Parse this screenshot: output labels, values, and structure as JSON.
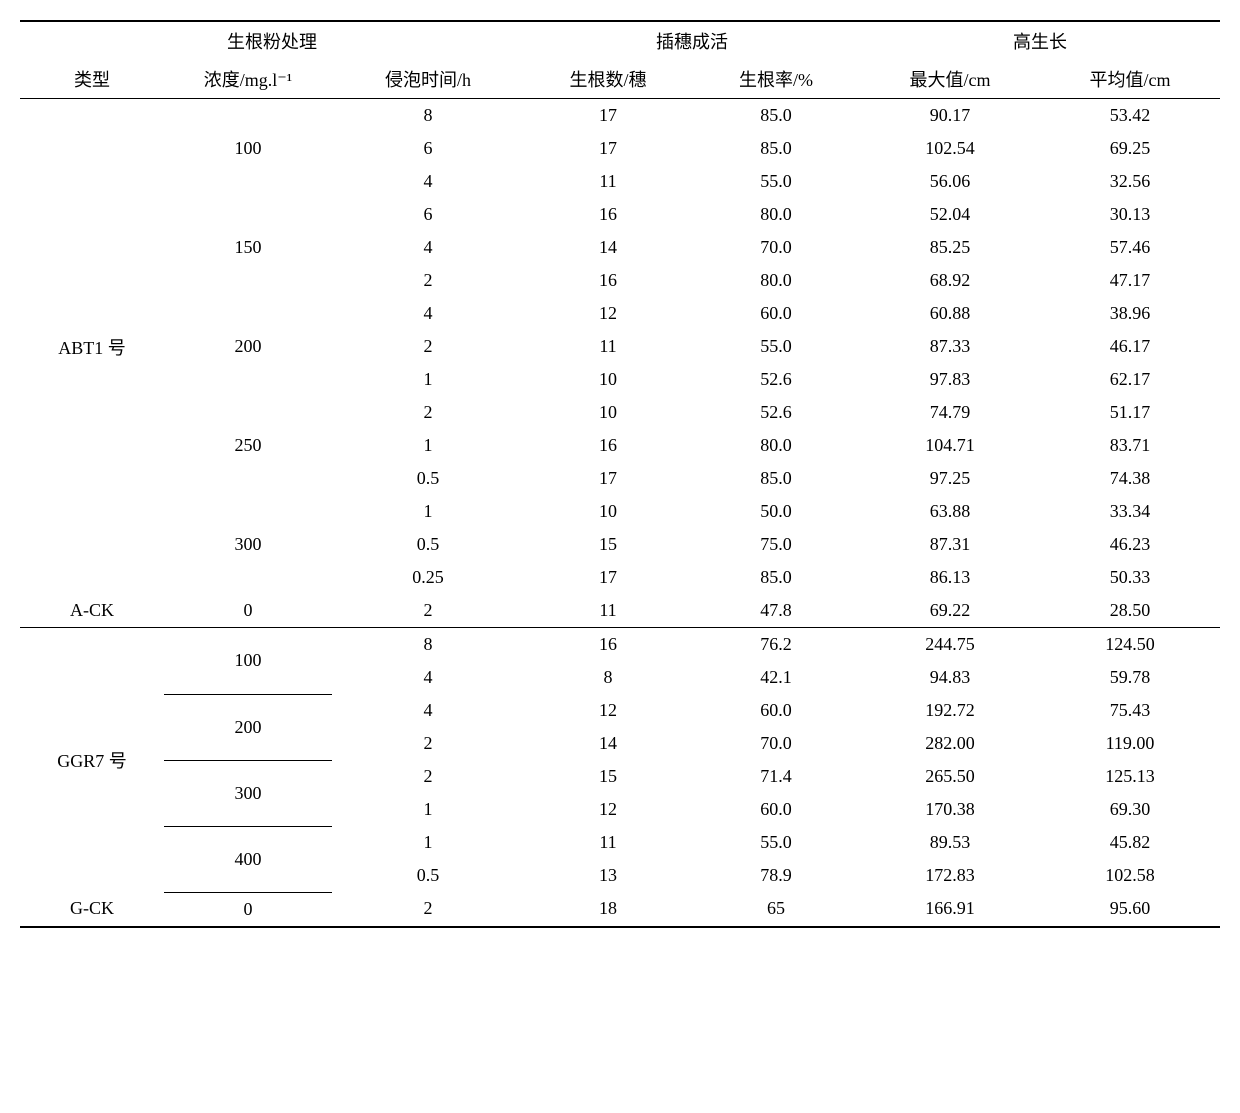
{
  "headers": {
    "group1": "生根粉处理",
    "group2": "插穗成活",
    "group3": "高生长",
    "type": "类型",
    "conc": "浓度/mg.l⁻¹",
    "soak": "侵泡时间/h",
    "rootnum": "生根数/穗",
    "rootrate": "生根率/%",
    "max": "最大值/cm",
    "avg": "平均值/cm"
  },
  "groups": [
    {
      "type_label": "ABT1 号",
      "ck_label": "A-CK",
      "ck_row": [
        "0",
        "2",
        "11",
        "47.8",
        "69.22",
        "28.50"
      ],
      "concs": [
        {
          "conc": "100",
          "underline": false,
          "rows": [
            [
              "8",
              "17",
              "85.0",
              "90.17",
              "53.42"
            ],
            [
              "6",
              "17",
              "85.0",
              "102.54",
              "69.25"
            ],
            [
              "4",
              "11",
              "55.0",
              "56.06",
              "32.56"
            ]
          ]
        },
        {
          "conc": "150",
          "underline": false,
          "rows": [
            [
              "6",
              "16",
              "80.0",
              "52.04",
              "30.13"
            ],
            [
              "4",
              "14",
              "70.0",
              "85.25",
              "57.46"
            ],
            [
              "2",
              "16",
              "80.0",
              "68.92",
              "47.17"
            ]
          ]
        },
        {
          "conc": "200",
          "underline": false,
          "rows": [
            [
              "4",
              "12",
              "60.0",
              "60.88",
              "38.96"
            ],
            [
              "2",
              "11",
              "55.0",
              "87.33",
              "46.17"
            ],
            [
              "1",
              "10",
              "52.6",
              "97.83",
              "62.17"
            ]
          ]
        },
        {
          "conc": "250",
          "underline": false,
          "rows": [
            [
              "2",
              "10",
              "52.6",
              "74.79",
              "51.17"
            ],
            [
              "1",
              "16",
              "80.0",
              "104.71",
              "83.71"
            ],
            [
              "0.5",
              "17",
              "85.0",
              "97.25",
              "74.38"
            ]
          ]
        },
        {
          "conc": "300",
          "underline": false,
          "rows": [
            [
              "1",
              "10",
              "50.0",
              "63.88",
              "33.34"
            ],
            [
              "0.5",
              "15",
              "75.0",
              "87.31",
              "46.23"
            ],
            [
              "0.25",
              "17",
              "85.0",
              "86.13",
              "50.33"
            ]
          ]
        }
      ]
    },
    {
      "type_label": "GGR7 号",
      "ck_label": "G-CK",
      "ck_row": [
        "0",
        "2",
        "18",
        "65",
        "166.91",
        "95.60"
      ],
      "concs": [
        {
          "conc": "100",
          "underline": true,
          "rows": [
            [
              "8",
              "16",
              "76.2",
              "244.75",
              "124.50"
            ],
            [
              "4",
              "8",
              "42.1",
              "94.83",
              "59.78"
            ]
          ]
        },
        {
          "conc": "200",
          "underline": true,
          "rows": [
            [
              "4",
              "12",
              "60.0",
              "192.72",
              "75.43"
            ],
            [
              "2",
              "14",
              "70.0",
              "282.00",
              "119.00"
            ]
          ]
        },
        {
          "conc": "300",
          "underline": true,
          "rows": [
            [
              "2",
              "15",
              "71.4",
              "265.50",
              "125.13"
            ],
            [
              "1",
              "12",
              "60.0",
              "170.38",
              "69.30"
            ]
          ]
        },
        {
          "conc": "400",
          "underline": true,
          "rows": [
            [
              "1",
              "11",
              "55.0",
              "89.53",
              "45.82"
            ],
            [
              "0.5",
              "13",
              "78.9",
              "172.83",
              "102.58"
            ]
          ]
        }
      ]
    }
  ]
}
